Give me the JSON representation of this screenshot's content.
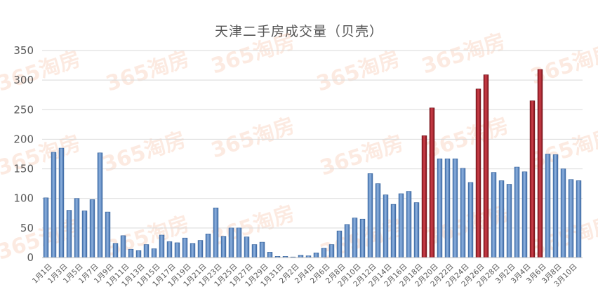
{
  "chart_data": {
    "type": "bar",
    "title": "天津二手房成交量（贝壳）",
    "xlabel": "",
    "ylabel": "",
    "ylim": [
      0,
      350
    ],
    "yticks": [
      0,
      50,
      100,
      150,
      200,
      250,
      300,
      350
    ],
    "grid": true,
    "legend": "none",
    "watermark": "365淘房",
    "colors": {
      "normal": "#5b8bc6",
      "highlight": "#a8202c",
      "grid": "#d9d9d9"
    },
    "categories": [
      "1月1日",
      "1月2日",
      "1月3日",
      "1月4日",
      "1月5日",
      "1月6日",
      "1月7日",
      "1月8日",
      "1月9日",
      "1月10日",
      "1月11日",
      "1月12日",
      "1月13日",
      "1月14日",
      "1月15日",
      "1月16日",
      "1月17日",
      "1月18日",
      "1月19日",
      "1月20日",
      "1月21日",
      "1月22日",
      "1月23日",
      "1月24日",
      "1月25日",
      "1月26日",
      "1月27日",
      "1月28日",
      "1月29日",
      "1月30日",
      "1月31日",
      "2月1日",
      "2月2日",
      "2月3日",
      "2月4日",
      "2月5日",
      "2月6日",
      "2月7日",
      "2月8日",
      "2月9日",
      "2月10日",
      "2月11日",
      "2月12日",
      "2月13日",
      "2月14日",
      "2月15日",
      "2月16日",
      "2月17日",
      "2月18日",
      "2月19日",
      "2月20日",
      "2月21日",
      "2月22日",
      "2月23日",
      "2月24日",
      "2月25日",
      "2月26日",
      "2月27日",
      "2月28日",
      "3月1日",
      "3月2日",
      "3月3日",
      "3月4日",
      "3月5日",
      "3月6日",
      "3月7日",
      "3月8日",
      "3月9日",
      "3月10日",
      "3月11日"
    ],
    "values": [
      101,
      178,
      185,
      80,
      100,
      79,
      98,
      177,
      77,
      24,
      37,
      14,
      12,
      22,
      15,
      38,
      27,
      25,
      33,
      24,
      29,
      40,
      84,
      36,
      50,
      50,
      35,
      22,
      26,
      9,
      2,
      2,
      1,
      4,
      3,
      8,
      16,
      22,
      45,
      56,
      67,
      65,
      142,
      125,
      106,
      90,
      108,
      112,
      93,
      206,
      253,
      167,
      167,
      167,
      151,
      127,
      285,
      309,
      144,
      130,
      124,
      153,
      145,
      265,
      318,
      175,
      174,
      150,
      132,
      130
    ],
    "highlight_indices": [
      49,
      50,
      56,
      57,
      63,
      64
    ],
    "x_tick_labels": [
      "1月1日",
      "1月3日",
      "1月5日",
      "1月7日",
      "1月9日",
      "1月11日",
      "1月13日",
      "1月15日",
      "1月17日",
      "1月19日",
      "1月21日",
      "1月23日",
      "1月25日",
      "1月27日",
      "1月29日",
      "1月31日",
      "2月2日",
      "2月4日",
      "2月6日",
      "2月8日",
      "2月10日",
      "2月12日",
      "2月14日",
      "2月16日",
      "2月18日",
      "2月20日",
      "2月22日",
      "2月24日",
      "2月26日",
      "2月28日",
      "3月2日",
      "3月4日",
      "3月6日",
      "3月8日",
      "3月10日"
    ]
  }
}
